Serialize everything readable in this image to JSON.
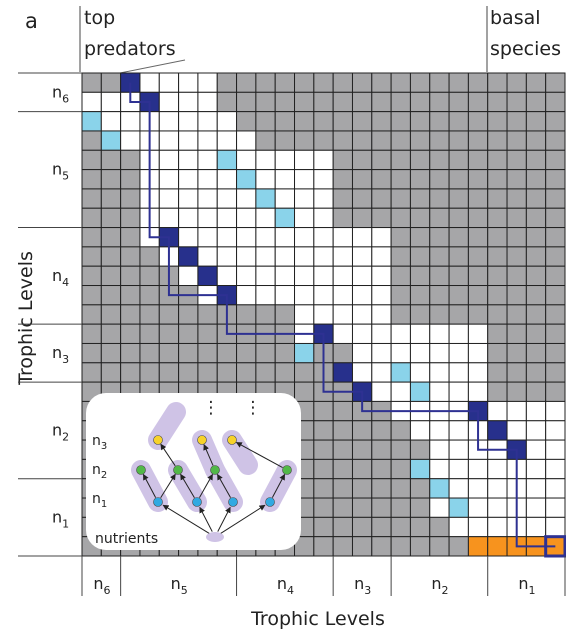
{
  "panel_label": "a",
  "top_labels": {
    "top_predators": [
      "top",
      "predators"
    ],
    "basal_species": [
      "basal",
      "species"
    ]
  },
  "axis_labels": {
    "y": "Trophic Levels",
    "x": "Trophic Levels"
  },
  "levels": [
    {
      "base": "n",
      "sub": "6",
      "size": 2
    },
    {
      "base": "n",
      "sub": "5",
      "size": 6
    },
    {
      "base": "n",
      "sub": "4",
      "size": 5
    },
    {
      "base": "n",
      "sub": "3",
      "size": 3
    },
    {
      "base": "n",
      "sub": "2",
      "size": 5
    },
    {
      "base": "n",
      "sub": "1",
      "size": 4
    }
  ],
  "matrix": {
    "size": 25,
    "colors": {
      "grey": "#a6a6a8",
      "white": "#ffffff",
      "dark_blue": "#27308c",
      "light_blue": "#8ad3ea",
      "orange": "#f7931e",
      "path": "#2e3192"
    },
    "white_cells": [
      [
        0,
        [
          2,
          3,
          4,
          5,
          6
        ]
      ],
      [
        1,
        [
          0,
          1,
          2,
          3,
          4,
          5,
          6
        ]
      ],
      [
        2,
        [
          1,
          2,
          3,
          4,
          5,
          6,
          7
        ]
      ],
      [
        3,
        [
          2,
          3,
          4,
          5,
          6,
          7,
          8
        ]
      ],
      [
        4,
        [
          3,
          4,
          5,
          6,
          7,
          8,
          9,
          10,
          11,
          12
        ]
      ],
      [
        5,
        [
          3,
          4,
          5,
          6,
          7,
          8,
          9,
          10,
          11,
          12
        ]
      ],
      [
        6,
        [
          3,
          4,
          5,
          6,
          7,
          8,
          9,
          10,
          11,
          12
        ]
      ],
      [
        7,
        [
          3,
          4,
          5,
          6,
          7,
          8,
          9,
          10,
          11,
          12
        ]
      ],
      [
        8,
        [
          3,
          4,
          5,
          6,
          7,
          8,
          9,
          10,
          11,
          12,
          13,
          14,
          15
        ]
      ],
      [
        9,
        [
          4,
          5,
          6,
          7,
          8,
          9,
          10,
          11,
          12,
          13,
          14,
          15
        ]
      ],
      [
        10,
        [
          5,
          6,
          7,
          8,
          9,
          10,
          11,
          12,
          13,
          14,
          15
        ]
      ],
      [
        11,
        [
          6,
          7,
          8,
          9,
          10,
          11,
          12,
          13,
          14,
          15
        ]
      ],
      [
        12,
        [
          11,
          12,
          13,
          14,
          15
        ]
      ],
      [
        13,
        [
          11,
          12,
          13,
          14,
          15,
          16,
          17,
          18,
          19,
          20
        ]
      ],
      [
        14,
        [
          14,
          15,
          16,
          17,
          18,
          19,
          20
        ]
      ],
      [
        15,
        [
          14,
          15,
          16,
          17,
          18,
          19,
          20
        ]
      ],
      [
        16,
        [
          15,
          16,
          17,
          18,
          19,
          20
        ]
      ],
      [
        17,
        [
          16,
          17,
          18,
          19,
          20,
          21,
          22,
          23,
          24
        ]
      ],
      [
        18,
        [
          17,
          18,
          19,
          20,
          21,
          22,
          23,
          24
        ]
      ],
      [
        19,
        [
          18,
          19,
          20,
          21,
          22,
          23,
          24
        ]
      ],
      [
        20,
        [
          18,
          19,
          20,
          21,
          22,
          23,
          24
        ]
      ],
      [
        21,
        [
          18,
          19,
          20,
          21,
          22,
          23,
          24
        ]
      ],
      [
        22,
        [
          18,
          19,
          20,
          21,
          22,
          23,
          24
        ]
      ],
      [
        23,
        [
          19,
          20,
          21,
          22,
          23,
          24
        ]
      ]
    ],
    "dark_blue_cells": [
      [
        0,
        2
      ],
      [
        1,
        3
      ],
      [
        8,
        4
      ],
      [
        9,
        5
      ],
      [
        10,
        6
      ],
      [
        11,
        7
      ],
      [
        13,
        12
      ],
      [
        15,
        13
      ],
      [
        16,
        14
      ],
      [
        17,
        20
      ],
      [
        18,
        21
      ],
      [
        19,
        22
      ]
    ],
    "light_blue_cells": [
      [
        2,
        0
      ],
      [
        3,
        1
      ],
      [
        4,
        7
      ],
      [
        5,
        8
      ],
      [
        6,
        9
      ],
      [
        7,
        10
      ],
      [
        14,
        11
      ],
      [
        15,
        16
      ],
      [
        16,
        17
      ],
      [
        20,
        17
      ],
      [
        21,
        18
      ],
      [
        22,
        19
      ]
    ],
    "orange_cells": [
      [
        24,
        20
      ],
      [
        24,
        21
      ],
      [
        24,
        22
      ],
      [
        24,
        23
      ],
      [
        24,
        24
      ]
    ],
    "highlight_cell": [
      24,
      24
    ],
    "predator_chain": [
      [
        0,
        2
      ],
      [
        1,
        3
      ],
      [
        8,
        4
      ],
      [
        11,
        7
      ],
      [
        13,
        12
      ],
      [
        16,
        14
      ],
      [
        17,
        20
      ],
      [
        19,
        22
      ],
      [
        24,
        24
      ]
    ]
  },
  "inset": {
    "levels": [
      {
        "base": "n",
        "sub": "3"
      },
      {
        "base": "n",
        "sub": "2"
      },
      {
        "base": "n",
        "sub": "1"
      }
    ],
    "nutrients": "nutrients",
    "dots": [
      "⋮",
      "⋮"
    ],
    "node_colors": {
      "yellow": "#f7d22a",
      "green": "#52b848",
      "blue": "#31a9e1",
      "chain": "#cfc3e6"
    }
  }
}
